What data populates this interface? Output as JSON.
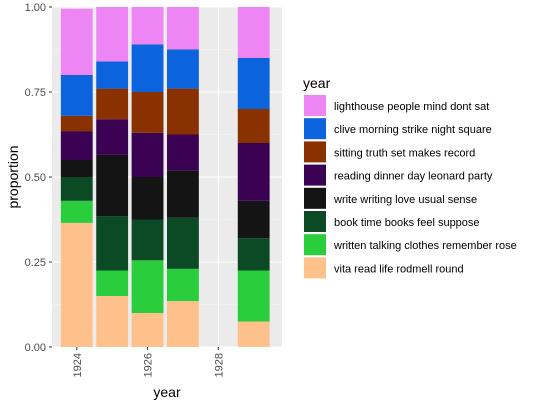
{
  "chart_data": {
    "type": "bar",
    "stacked": true,
    "xlabel": "year",
    "ylabel": "proportion",
    "ylim": [
      0,
      1
    ],
    "xlim": [
      1923.3,
      1929.8
    ],
    "x_ticks": [
      1924,
      1926,
      1928
    ],
    "x_tick_labels": [
      "1924",
      "1926",
      "1928"
    ],
    "y_ticks": [
      0,
      0.25,
      0.5,
      0.75,
      1.0
    ],
    "y_tick_labels": [
      "0.00",
      "0.25",
      "0.50",
      "0.75",
      "1.00"
    ],
    "x": [
      1924,
      1925,
      1926,
      1927,
      1929
    ],
    "legend_title": "year",
    "legend_position": "right",
    "grid": true,
    "series": [
      {
        "name": "vita read life rodmell round",
        "color": "#FFC18B",
        "values": [
          0.365,
          0.15,
          0.1,
          0.135,
          0.075
        ]
      },
      {
        "name": "written talking clothes remember rose",
        "color": "#2ACD3C",
        "values": [
          0.065,
          0.075,
          0.155,
          0.095,
          0.15
        ]
      },
      {
        "name": "book time books feel suppose",
        "color": "#0B4A25",
        "values": [
          0.07,
          0.16,
          0.12,
          0.15,
          0.095
        ]
      },
      {
        "name": "write writing love usual sense",
        "color": "#141414",
        "values": [
          0.05,
          0.18,
          0.125,
          0.14,
          0.11
        ]
      },
      {
        "name": "reading dinner day leonard party",
        "color": "#3B0152",
        "values": [
          0.085,
          0.105,
          0.13,
          0.105,
          0.17
        ]
      },
      {
        "name": "sitting truth set makes record",
        "color": "#893100",
        "values": [
          0.045,
          0.09,
          0.12,
          0.135,
          0.1
        ]
      },
      {
        "name": "clive morning strike night square",
        "color": "#0B63DD",
        "values": [
          0.12,
          0.08,
          0.14,
          0.115,
          0.15
        ]
      },
      {
        "name": "lighthouse people mind dont sat",
        "color": "#EE85F4",
        "values": [
          0.195,
          0.16,
          0.11,
          0.125,
          0.15
        ]
      }
    ]
  },
  "colors": {
    "panel_bg": "#EBEBEB",
    "grid_major": "#FFFFFF",
    "grid_minor": "#F5F5F5",
    "tick_text": "#4D4D4D",
    "tick_mark": "#333333"
  }
}
